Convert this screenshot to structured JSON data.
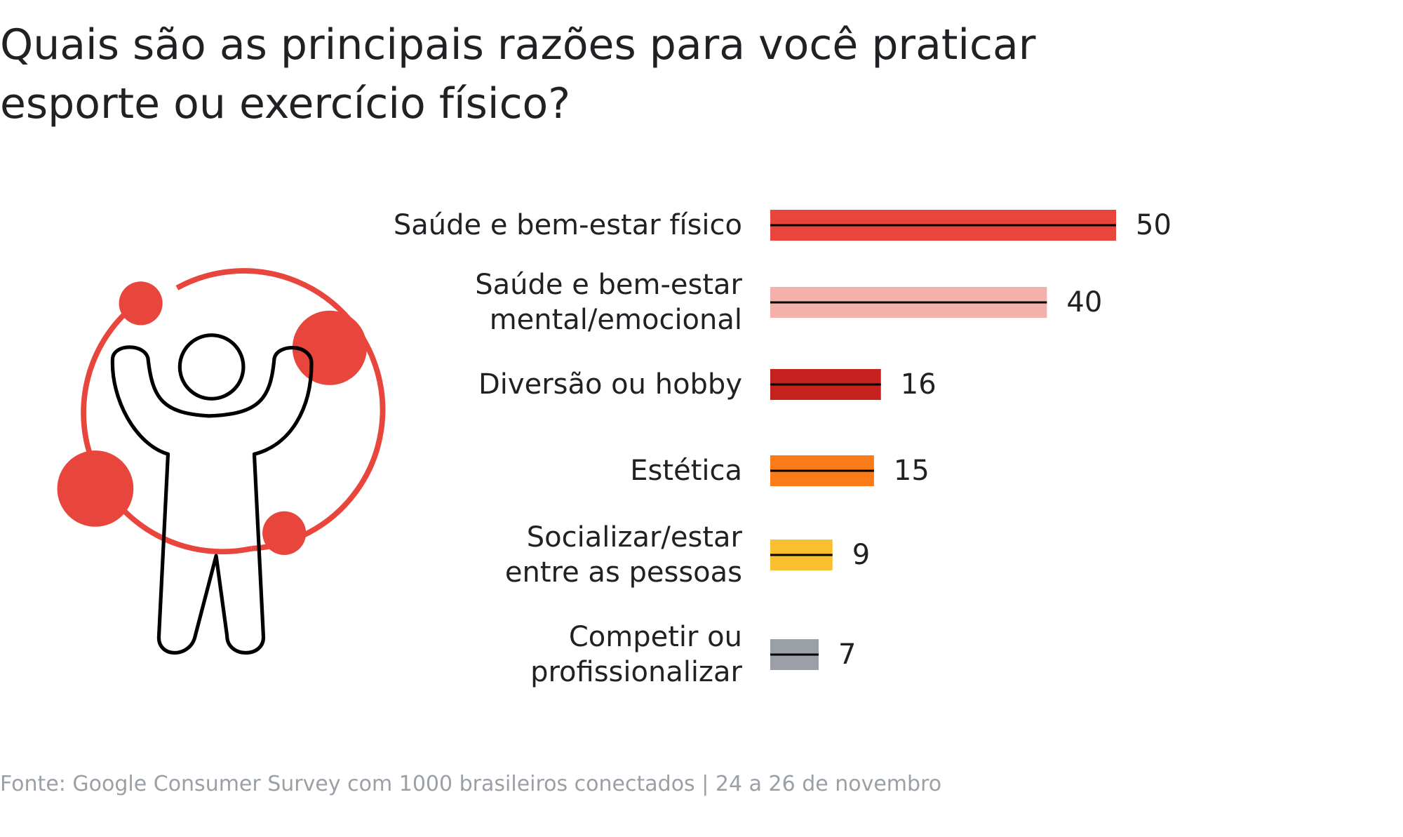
{
  "chart_data": {
    "type": "bar",
    "orientation": "horizontal",
    "title": "Quais são as principais razões para você praticar\nesporte ou exercício físico?",
    "categories": [
      "Saúde e bem-estar físico",
      "Saúde e bem-estar\nmental/emocional",
      "Diversão ou hobby",
      "Estética",
      "Socializar/estar\nentre as pessoas",
      "Competir ou\nprofissionalizar"
    ],
    "values": [
      50,
      40,
      16,
      15,
      9,
      7
    ],
    "colors": [
      "#e8453c",
      "#f4b0ab",
      "#c5221f",
      "#fa7b17",
      "#f9bf2f",
      "#9aa0a6"
    ],
    "source": "Fonte:  Google Consumer Survey com 1000 brasileiros conectados | 24 a 26 de novembro"
  }
}
